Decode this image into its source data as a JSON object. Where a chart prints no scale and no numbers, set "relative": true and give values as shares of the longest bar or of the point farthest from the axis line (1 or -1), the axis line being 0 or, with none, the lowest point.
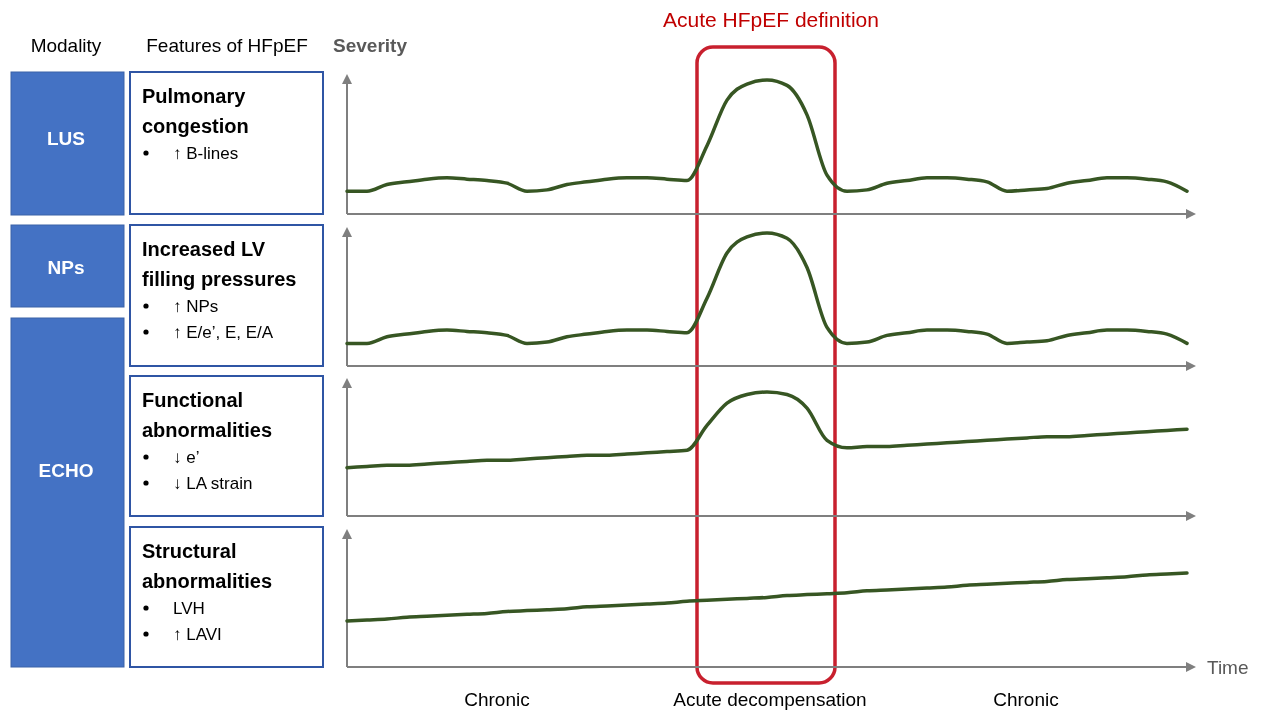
{
  "chart_data": [
    {
      "type": "other",
      "annotations": [
        "Modality",
        "Features of HFpEF",
        "LUS",
        "NPs",
        "ECHO",
        "Acute HFpEF definition",
        "Chronic",
        "Acute decompensation",
        "Chronic"
      ]
    },
    {
      "type": "line",
      "relative": true,
      "title": "Pulmonary congestion",
      "ylabel": "Severity",
      "annotations": [
        "↑ B-lines"
      ],
      "color": "#375623",
      "categories": [
        null,
        null,
        null,
        null,
        null,
        null,
        null,
        null,
        null,
        null,
        null,
        null,
        null,
        null,
        null,
        null,
        null,
        null,
        null,
        null,
        null,
        null,
        null,
        null,
        null,
        null,
        null,
        null,
        null,
        null,
        null,
        null,
        null,
        null,
        null,
        null,
        null,
        null,
        null,
        null,
        null,
        null,
        null
      ],
      "values": [
        0.17,
        0.17,
        0.22,
        0.24,
        0.26,
        0.27,
        0.26,
        0.25,
        0.23,
        0.17,
        0.18,
        0.22,
        0.24,
        0.26,
        0.27,
        0.27,
        0.26,
        0.25,
        0.51,
        0.85,
        0.97,
        1.0,
        0.96,
        0.74,
        0.29,
        0.17,
        0.18,
        0.23,
        0.25,
        0.27,
        0.27,
        0.26,
        0.24,
        0.17,
        0.18,
        0.19,
        0.23,
        0.25,
        0.27,
        0.27,
        0.26,
        0.24,
        0.17
      ]
    },
    {
      "type": "line",
      "relative": true,
      "title": "Increased LV filling pressures",
      "annotations": [
        "↑ NPs",
        "↑ E/e’, E, E/A"
      ],
      "color": "#375623",
      "categories": [
        null,
        null,
        null,
        null,
        null,
        null,
        null,
        null,
        null,
        null,
        null,
        null,
        null,
        null,
        null,
        null,
        null,
        null,
        null,
        null,
        null,
        null,
        null,
        null,
        null,
        null,
        null,
        null,
        null,
        null,
        null,
        null,
        null,
        null,
        null,
        null,
        null,
        null,
        null,
        null,
        null,
        null,
        null
      ],
      "values": [
        0.17,
        0.17,
        0.22,
        0.24,
        0.26,
        0.27,
        0.26,
        0.25,
        0.23,
        0.17,
        0.18,
        0.22,
        0.24,
        0.26,
        0.27,
        0.27,
        0.26,
        0.25,
        0.51,
        0.85,
        0.97,
        1.0,
        0.96,
        0.74,
        0.29,
        0.17,
        0.18,
        0.23,
        0.25,
        0.27,
        0.27,
        0.26,
        0.24,
        0.17,
        0.18,
        0.19,
        0.23,
        0.25,
        0.27,
        0.27,
        0.26,
        0.24,
        0.17
      ]
    },
    {
      "type": "line",
      "relative": true,
      "title": "Functional abnormalities",
      "annotations": [
        "↓ e’",
        "↓ LA strain"
      ],
      "color": "#375623",
      "categories": [
        null,
        null,
        null,
        null,
        null,
        null,
        null,
        null,
        null,
        null,
        null,
        null,
        null,
        null,
        null,
        null,
        null,
        null,
        null,
        null,
        null,
        null,
        null,
        null,
        null,
        null,
        null,
        null,
        null,
        null,
        null,
        null,
        null,
        null,
        null,
        null,
        null,
        null,
        null,
        null,
        null,
        null,
        null
      ],
      "values": [
        0.39,
        0.4,
        0.41,
        0.41,
        0.42,
        0.43,
        0.44,
        0.45,
        0.45,
        0.46,
        0.47,
        0.48,
        0.49,
        0.49,
        0.5,
        0.51,
        0.52,
        0.53,
        0.73,
        0.91,
        0.98,
        1.0,
        0.98,
        0.87,
        0.61,
        0.55,
        0.56,
        0.56,
        0.57,
        0.58,
        0.59,
        0.6,
        0.61,
        0.62,
        0.63,
        0.64,
        0.64,
        0.65,
        0.66,
        0.67,
        0.68,
        0.69,
        0.7
      ]
    },
    {
      "type": "line",
      "relative": true,
      "title": "Structural abnormalities",
      "xlabel": "Time",
      "annotations": [
        "LVH",
        "↑ LAVI"
      ],
      "color": "#375623",
      "categories": [
        null,
        null,
        null,
        null,
        null,
        null,
        null,
        null,
        null,
        null,
        null,
        null,
        null,
        null,
        null,
        null,
        null,
        null,
        null,
        null,
        null,
        null,
        null,
        null,
        null,
        null,
        null,
        null,
        null,
        null,
        null,
        null,
        null,
        null,
        null,
        null,
        null,
        null,
        null,
        null,
        null,
        null,
        null
      ],
      "values": [
        0.49,
        0.5,
        0.51,
        0.53,
        0.54,
        0.55,
        0.56,
        0.57,
        0.59,
        0.6,
        0.61,
        0.62,
        0.64,
        0.65,
        0.66,
        0.67,
        0.68,
        0.7,
        0.71,
        0.72,
        0.73,
        0.74,
        0.76,
        0.77,
        0.78,
        0.79,
        0.81,
        0.82,
        0.83,
        0.84,
        0.85,
        0.87,
        0.88,
        0.89,
        0.9,
        0.91,
        0.93,
        0.94,
        0.95,
        0.96,
        0.98,
        0.99,
        1.0
      ]
    }
  ]
}
